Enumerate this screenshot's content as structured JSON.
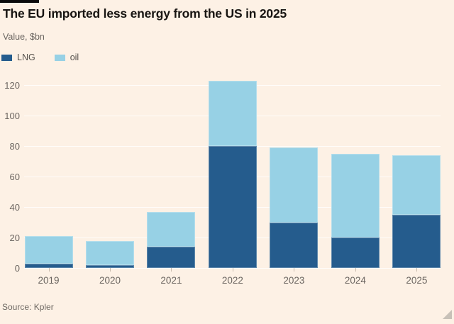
{
  "header": {
    "title": "The EU imported less energy from the US in 2025",
    "subtitle": "Value, $bn"
  },
  "chart_data": {
    "type": "bar",
    "stacked": true,
    "title": "The EU imported less energy from the US in 2025",
    "subtitle": "Value, $bn",
    "categories": [
      "2019",
      "2020",
      "2021",
      "2022",
      "2023",
      "2024",
      "2025"
    ],
    "series": [
      {
        "name": "LNG",
        "color": "#255c8d",
        "values": [
          3,
          2,
          14,
          80,
          30,
          20,
          35
        ]
      },
      {
        "name": "oil",
        "color": "#97d1e5",
        "values": [
          18,
          15.5,
          23,
          43,
          49,
          55,
          39
        ]
      }
    ],
    "totals": [
      21,
      17.5,
      37,
      123,
      79,
      75,
      74
    ],
    "ylabel": "Value, $bn",
    "xlabel": "",
    "ylim": [
      0,
      120
    ],
    "yticks": [
      0,
      20,
      40,
      60,
      80,
      100,
      120
    ],
    "grid": true,
    "legend_position": "top-left"
  },
  "footer": {
    "source": "Source: Kpler"
  },
  "icons": {
    "lng_swatch": "lng-swatch-icon",
    "oil_swatch": "oil-swatch-icon",
    "resize_handle": "resize-handle-icon"
  },
  "colors": {
    "background": "#fdf1e5",
    "top_rule": "#0a0a0a",
    "title_text": "#181512",
    "axis_text": "#6b6560",
    "legend_text": "#55504b",
    "gridline": "#fbf0e2",
    "tick": "#c9bcae",
    "lng": "#255c8d",
    "oil": "#97d1e5",
    "resize_handle": "#c8c1b8"
  }
}
